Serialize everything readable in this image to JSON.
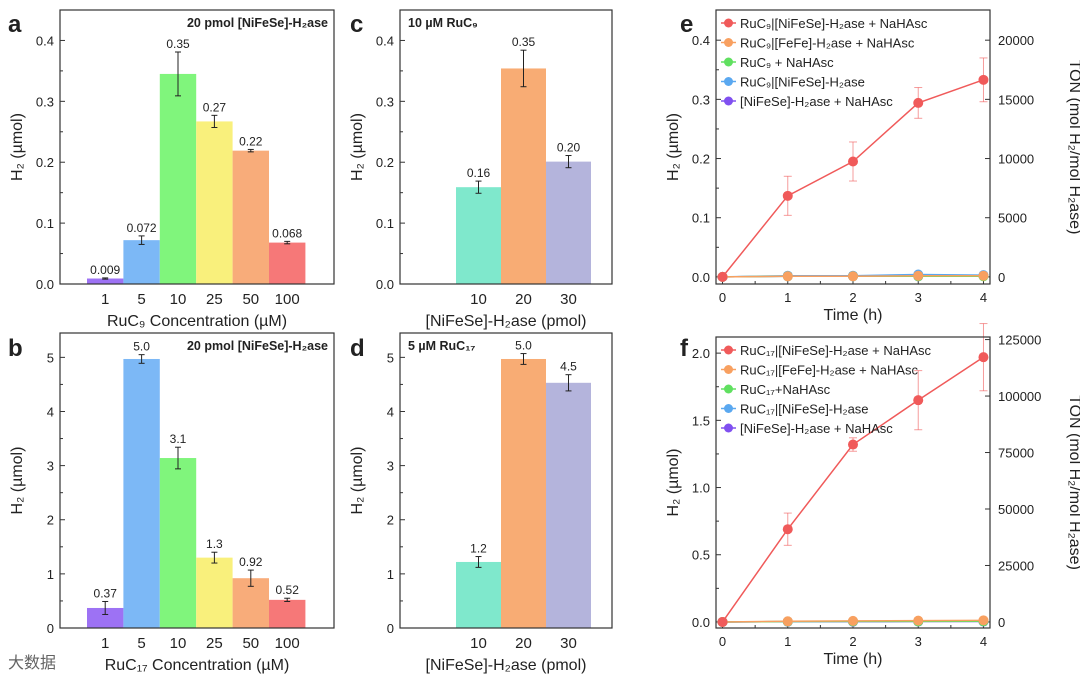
{
  "watermark": "大数据",
  "chart_data": [
    {
      "id": "a",
      "panel_letter": "a",
      "type": "bar",
      "title": "20 pmol [NiFeSe]-H₂ase",
      "xlabel": "RuC₉ Concentration (µM)",
      "ylabel": "H₂ (µmol)",
      "categories": [
        "1",
        "5",
        "10",
        "25",
        "50",
        "100"
      ],
      "values": [
        0.009,
        0.072,
        0.345,
        0.267,
        0.219,
        0.068
      ],
      "errors": [
        0.001,
        0.007,
        0.036,
        0.01,
        0.002,
        0.002
      ],
      "labels": [
        "0.009",
        "0.072",
        "0.35",
        "0.27",
        "0.22",
        "0.068"
      ],
      "colors": [
        "#9d72f4",
        "#7cb8f6",
        "#80f57c",
        "#f9f07c",
        "#f8ac7a",
        "#f67878"
      ],
      "ylim": [
        0,
        0.45
      ],
      "yticks": [
        0.0,
        0.1,
        0.2,
        0.3,
        0.4
      ],
      "ytick_labels": [
        "0.0",
        "0.1",
        "0.2",
        "0.3",
        "0.4"
      ]
    },
    {
      "id": "b",
      "panel_letter": "b",
      "type": "bar",
      "title": "20 pmol [NiFeSe]-H₂ase",
      "xlabel": "RuC₁₇ Concentration (µM)",
      "ylabel": "H₂ (µmol)",
      "categories": [
        "1",
        "5",
        "10",
        "25",
        "50",
        "100"
      ],
      "values": [
        0.37,
        4.97,
        3.14,
        1.3,
        0.92,
        0.52
      ],
      "errors": [
        0.12,
        0.08,
        0.2,
        0.1,
        0.15,
        0.03
      ],
      "labels": [
        "0.37",
        "5.0",
        "3.1",
        "1.3",
        "0.92",
        "0.52"
      ],
      "colors": [
        "#9d72f4",
        "#7cb8f6",
        "#80f57c",
        "#f9f07c",
        "#f8ac7a",
        "#f67878"
      ],
      "ylim": [
        0,
        5.45
      ],
      "yticks": [
        0,
        1,
        2,
        3,
        4,
        5
      ],
      "ytick_labels": [
        "0",
        "1",
        "2",
        "3",
        "4",
        "5"
      ]
    },
    {
      "id": "c",
      "panel_letter": "c",
      "type": "bar",
      "title": "10 µM RuC₉",
      "xlabel": "[NiFeSe]-H₂ase (pmol)",
      "ylabel": "H₂ (µmol)",
      "categories": [
        "10",
        "20",
        "30"
      ],
      "values": [
        0.159,
        0.354,
        0.201
      ],
      "errors": [
        0.01,
        0.03,
        0.01
      ],
      "labels": [
        "0.16",
        "0.35",
        "0.20"
      ],
      "colors": [
        "#7fe8cc",
        "#f8ac74",
        "#b4b4dc"
      ],
      "ylim": [
        0,
        0.45
      ],
      "yticks": [
        0.0,
        0.1,
        0.2,
        0.3,
        0.4
      ],
      "ytick_labels": [
        "0.0",
        "0.1",
        "0.2",
        "0.3",
        "0.4"
      ]
    },
    {
      "id": "d",
      "panel_letter": "d",
      "type": "bar",
      "title": "5 µM RuC₁₇",
      "xlabel": "[NiFeSe]-H₂ase (pmol)",
      "ylabel": "H₂ (µmol)",
      "categories": [
        "10",
        "20",
        "30"
      ],
      "values": [
        1.22,
        4.97,
        4.53
      ],
      "errors": [
        0.1,
        0.1,
        0.15
      ],
      "labels": [
        "1.2",
        "5.0",
        "4.5"
      ],
      "colors": [
        "#7fe8cc",
        "#f8ac74",
        "#b4b4dc"
      ],
      "ylim": [
        0,
        5.45
      ],
      "yticks": [
        0,
        1,
        2,
        3,
        4,
        5
      ],
      "ytick_labels": [
        "0",
        "1",
        "2",
        "3",
        "4",
        "5"
      ]
    },
    {
      "id": "e",
      "panel_letter": "e",
      "type": "line",
      "xlabel": "Time (h)",
      "ylabel": "H₂ (µmol)",
      "y2label": "TON (mol H₂/mol H₂ase)",
      "x": [
        0,
        1,
        2,
        3,
        4
      ],
      "xlim": [
        -0.1,
        4.1
      ],
      "xticks": [
        0,
        1,
        2,
        3,
        4
      ],
      "ylim": [
        -0.012,
        0.451
      ],
      "yticks": [
        0.0,
        0.1,
        0.2,
        0.3,
        0.4
      ],
      "ytick_labels": [
        "0.0",
        "0.1",
        "0.2",
        "0.3",
        "0.4"
      ],
      "y2_per_y": 50000,
      "y2ticks": [
        0,
        5000,
        10000,
        15000,
        20000
      ],
      "legend": "top-left",
      "series": [
        {
          "name": "RuC₉|[NiFeSe]-H₂ase + NaHAsc",
          "color": "#f05a5a",
          "values": [
            0,
            0.137,
            0.195,
            0.294,
            0.333
          ],
          "errors": [
            0,
            0.033,
            0.033,
            0.026,
            0.037
          ]
        },
        {
          "name": "RuC₉|[FeFe]-H₂ase + NaHAsc",
          "color": "#f8a060",
          "values": [
            0,
            0.001,
            0.001,
            0.002,
            0.002
          ],
          "errors": [
            0,
            0,
            0,
            0,
            0
          ]
        },
        {
          "name": "RuC₉ + NaHAsc",
          "color": "#60e060",
          "values": [
            0,
            0.001,
            0.001,
            0.001,
            0.001
          ],
          "errors": [
            0,
            0,
            0,
            0,
            0
          ]
        },
        {
          "name": "RuC₉|[NiFeSe]-H₂ase",
          "color": "#5aa8f0",
          "values": [
            0,
            0.002,
            0.002,
            0.004,
            0.003
          ],
          "errors": [
            0,
            0,
            0,
            0,
            0
          ]
        },
        {
          "name": "[NiFeSe]-H₂ase + NaHAsc",
          "color": "#8050f0",
          "values": [
            0,
            0.001,
            0.001,
            0.001,
            0.002
          ],
          "errors": [
            0,
            0,
            0,
            0,
            0
          ]
        }
      ]
    },
    {
      "id": "f",
      "panel_letter": "f",
      "type": "line",
      "xlabel": "Time (h)",
      "ylabel": "H₂ (µmol)",
      "y2label": "TON (mol H₂/mol H₂ase)",
      "x": [
        0,
        1,
        2,
        3,
        4
      ],
      "xlim": [
        -0.1,
        4.1
      ],
      "xticks": [
        0,
        1,
        2,
        3,
        4
      ],
      "ylim": [
        -0.045,
        2.12
      ],
      "yticks": [
        0.0,
        0.5,
        1.0,
        1.5,
        2.0
      ],
      "ytick_labels": [
        "0.0",
        "0.5",
        "1.0",
        "1.5",
        "2.0"
      ],
      "y2_per_y": 59500,
      "y2ticks": [
        0,
        25000,
        50000,
        75000,
        100000,
        125000
      ],
      "legend": "top-left",
      "series": [
        {
          "name": "RuC₁₇|[NiFeSe]-H₂ase + NaHAsc",
          "color": "#f05a5a",
          "values": [
            0,
            0.69,
            1.32,
            1.65,
            1.97
          ],
          "errors": [
            0,
            0.12,
            0.05,
            0.22,
            0.25
          ]
        },
        {
          "name": "RuC₁₇|[FeFe]-H₂ase + NaHAsc",
          "color": "#f8a060",
          "values": [
            0,
            0.005,
            0.008,
            0.01,
            0.012
          ],
          "errors": [
            0,
            0,
            0,
            0,
            0
          ]
        },
        {
          "name": "RuC₁₇+NaHAsc",
          "color": "#60e060",
          "values": [
            0,
            0.003,
            0.004,
            0.004,
            0.005
          ],
          "errors": [
            0,
            0,
            0,
            0,
            0
          ]
        },
        {
          "name": "RuC₁₇|[NiFeSe]-H₂ase",
          "color": "#5aa8f0",
          "values": [
            0,
            0.003,
            0.004,
            0.005,
            0.005
          ],
          "errors": [
            0,
            0,
            0,
            0,
            0
          ]
        },
        {
          "name": "[NiFeSe]-H₂ase + NaHAsc",
          "color": "#8050f0",
          "values": [
            0,
            0.002,
            0.002,
            0.003,
            0.003
          ],
          "errors": [
            0,
            0,
            0,
            0,
            0
          ]
        }
      ]
    }
  ]
}
